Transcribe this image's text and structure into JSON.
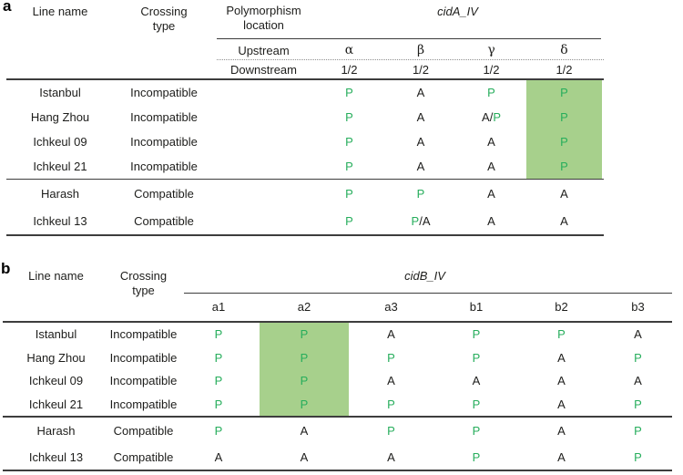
{
  "colors": {
    "present_text_green": "#27ae5c",
    "absent_text_black": "#1d1d1b",
    "highlight_cell_green": "#a7d08c",
    "rule_gray": "#3d3d3d"
  },
  "panel_a": {
    "label": "a",
    "header": {
      "line_name": "Line name",
      "crossing_type_line1": "Crossing",
      "crossing_type_line2": "type",
      "polymorphism_line1": "Polymorphism",
      "polymorphism_line2": "location",
      "gene": "cidA_IV",
      "upstream_label": "Upstream",
      "downstream_label": "Downstream",
      "upstream_alleles": [
        "α",
        "β",
        "γ",
        "δ"
      ],
      "downstream_alleles": [
        "1/2",
        "1/2",
        "1/2",
        "1/2"
      ]
    },
    "highlight_column_index": 3,
    "groups": [
      {
        "name": "incompatible",
        "highlighted": true,
        "rows": [
          {
            "line_name": "Istanbul",
            "crossing_type": "Incompatible",
            "values": [
              "P",
              "A",
              "P",
              "P"
            ]
          },
          {
            "line_name": "Hang Zhou",
            "crossing_type": "Incompatible",
            "values": [
              "P",
              "A",
              "A/P",
              "P"
            ]
          },
          {
            "line_name": "Ichkeul 09",
            "crossing_type": "Incompatible",
            "values": [
              "P",
              "A",
              "A",
              "P"
            ]
          },
          {
            "line_name": "Ichkeul 21",
            "crossing_type": "Incompatible",
            "values": [
              "P",
              "A",
              "A",
              "P"
            ]
          }
        ]
      },
      {
        "name": "compatible",
        "highlighted": false,
        "rows": [
          {
            "line_name": "Harash",
            "crossing_type": "Compatible",
            "values": [
              "P",
              "P",
              "A",
              "A"
            ]
          },
          {
            "line_name": "Ichkeul 13",
            "crossing_type": "Compatible",
            "values": [
              "P",
              "P/A",
              "A",
              "A"
            ]
          }
        ]
      }
    ]
  },
  "panel_b": {
    "label": "b",
    "header": {
      "line_name": "Line name",
      "crossing_type_line1": "Crossing",
      "crossing_type_line2": "type",
      "gene": "cidB_IV",
      "alleles": [
        "a1",
        "a2",
        "a3",
        "b1",
        "b2",
        "b3"
      ]
    },
    "highlight_column_index": 1,
    "groups": [
      {
        "name": "incompatible",
        "highlighted": true,
        "rows": [
          {
            "line_name": "Istanbul",
            "crossing_type": "Incompatible",
            "values": [
              "P",
              "P",
              "A",
              "P",
              "P",
              "A"
            ]
          },
          {
            "line_name": "Hang Zhou",
            "crossing_type": "Incompatible",
            "values": [
              "P",
              "P",
              "P",
              "P",
              "A",
              "P"
            ]
          },
          {
            "line_name": "Ichkeul 09",
            "crossing_type": "Incompatible",
            "values": [
              "P",
              "P",
              "A",
              "A",
              "A",
              "A"
            ]
          },
          {
            "line_name": "Ichkeul 21",
            "crossing_type": "Incompatible",
            "values": [
              "P",
              "P",
              "P",
              "P",
              "A",
              "P"
            ]
          }
        ]
      },
      {
        "name": "compatible",
        "highlighted": false,
        "rows": [
          {
            "line_name": "Harash",
            "crossing_type": "Compatible",
            "values": [
              "P",
              "A",
              "P",
              "P",
              "A",
              "P"
            ]
          },
          {
            "line_name": "Ichkeul 13",
            "crossing_type": "Compatible",
            "values": [
              "A",
              "A",
              "A",
              "P",
              "A",
              "P"
            ]
          }
        ]
      }
    ]
  }
}
